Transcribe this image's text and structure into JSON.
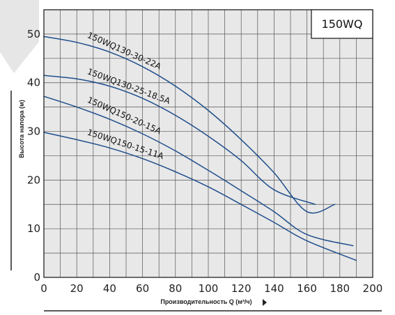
{
  "chart_data": {
    "type": "line",
    "title": "150WQ",
    "xlabel": "Производительность Q (м³/ч)",
    "ylabel": "Высота напора (м)",
    "xlim": [
      0,
      200
    ],
    "ylim": [
      0,
      55
    ],
    "x_ticks": [
      "0",
      "20",
      "40",
      "60",
      "80",
      "100",
      "120",
      "140",
      "160",
      "180",
      "200"
    ],
    "y_ticks": [
      "0",
      "10",
      "20",
      "30",
      "40",
      "50"
    ],
    "grid": true,
    "series_color": "#1f4e8c",
    "series": [
      {
        "name": "150WQ130-30-22A",
        "x": [
          0,
          20,
          40,
          60,
          80,
          100,
          120,
          140,
          160,
          177
        ],
        "y": [
          49.5,
          48.3,
          46.3,
          43.3,
          39.3,
          34.3,
          28.3,
          21.5,
          13.5,
          15
        ]
      },
      {
        "name": "150WQ130-25-18.5A",
        "x": [
          0,
          20,
          40,
          60,
          80,
          100,
          120,
          140,
          165
        ],
        "y": [
          41.5,
          40.8,
          39.3,
          36.8,
          33.3,
          29.0,
          24.0,
          18.0,
          15
        ]
      },
      {
        "name": "150WQ150-20-15A",
        "x": [
          0,
          20,
          40,
          60,
          80,
          100,
          120,
          140,
          160,
          188
        ],
        "y": [
          37.2,
          35.0,
          32.5,
          29.5,
          26.0,
          22.0,
          17.8,
          13.5,
          8.8,
          6.5
        ]
      },
      {
        "name": "150WQ150-15-11A",
        "x": [
          0,
          20,
          40,
          60,
          80,
          100,
          120,
          140,
          160,
          190
        ],
        "y": [
          29.8,
          28.3,
          26.6,
          24.4,
          21.7,
          18.6,
          15.0,
          11.3,
          7.5,
          3.5
        ]
      }
    ]
  }
}
